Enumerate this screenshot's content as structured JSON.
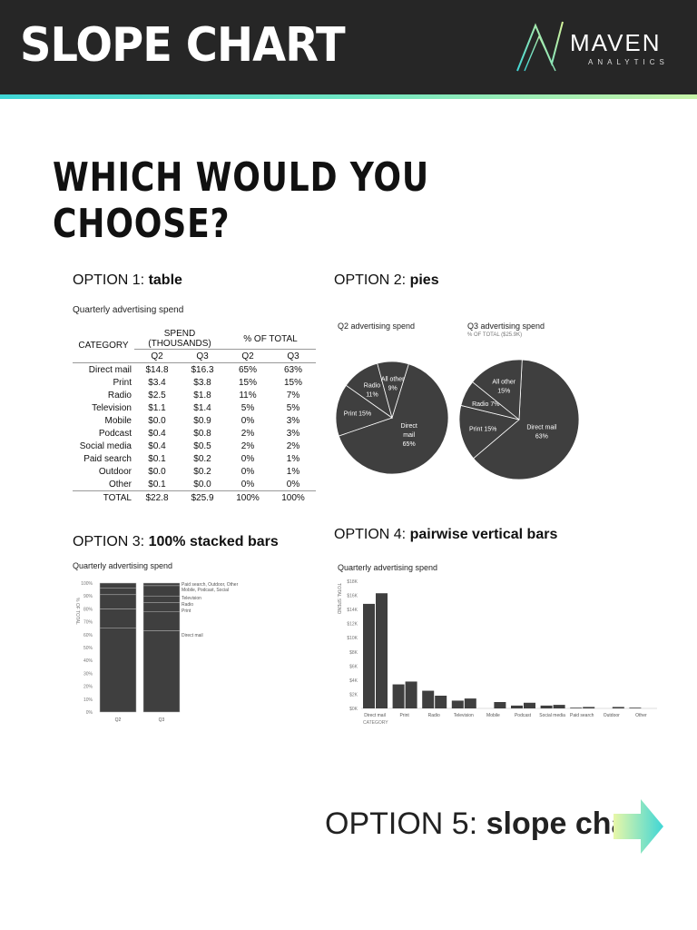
{
  "header": {
    "title": "SLOPE CHART",
    "logo_word": "MAVEN",
    "logo_sub": "ANALYTICS"
  },
  "question": "WHICH WOULD YOU CHOOSE?",
  "option1": {
    "prefix": "OPTION 1: ",
    "name": "table",
    "subtitle": "Quarterly advertising spend",
    "col_category": "CATEGORY",
    "col_spend": "SPEND (THOUSANDS)",
    "col_pct": "% OF TOTAL",
    "q2": "Q2",
    "q3": "Q3"
  },
  "option2": {
    "prefix": "OPTION 2: ",
    "name": "pies",
    "left_title": "Q2 advertising spend",
    "right_title": "Q3 advertising spend",
    "right_note": "% OF TOTAL ($25.9K)"
  },
  "option3": {
    "prefix": "OPTION 3: ",
    "name": "100% stacked bars",
    "subtitle": "Quarterly advertising spend",
    "ylabel": "% OF TOTAL",
    "labels": [
      "Paid search, Outdoor, Other",
      "Mobile, Podcast, Social",
      "Television",
      "Radio",
      "Print",
      "Direct mail"
    ]
  },
  "option4": {
    "prefix": "OPTION 4: ",
    "name": "pairwise vertical bars",
    "subtitle": "Quarterly advertising spend",
    "ylabel": "TOTAL SPEND",
    "xlabel": "CATEGORY"
  },
  "option5": {
    "prefix": "OPTION 5: ",
    "name": "slope chart"
  },
  "chart_data": [
    {
      "type": "table",
      "title": "Quarterly advertising spend",
      "columns": [
        "CATEGORY",
        "Q2",
        "Q3",
        "Q2",
        "Q3"
      ],
      "rows": [
        [
          "Direct mail",
          "$14.8",
          "$16.3",
          "65%",
          "63%"
        ],
        [
          "Print",
          "$3.4",
          "$3.8",
          "15%",
          "15%"
        ],
        [
          "Radio",
          "$2.5",
          "$1.8",
          "11%",
          "7%"
        ],
        [
          "Television",
          "$1.1",
          "$1.4",
          "5%",
          "5%"
        ],
        [
          "Mobile",
          "$0.0",
          "$0.9",
          "0%",
          "3%"
        ],
        [
          "Podcast",
          "$0.4",
          "$0.8",
          "2%",
          "3%"
        ],
        [
          "Social media",
          "$0.4",
          "$0.5",
          "2%",
          "2%"
        ],
        [
          "Paid search",
          "$0.1",
          "$0.2",
          "0%",
          "1%"
        ],
        [
          "Outdoor",
          "$0.0",
          "$0.2",
          "0%",
          "1%"
        ],
        [
          "Other",
          "$0.1",
          "$0.0",
          "0%",
          "0%"
        ]
      ],
      "total": [
        "TOTAL",
        "$22.8",
        "$25.9",
        "100%",
        "100%"
      ]
    },
    {
      "type": "pie",
      "title": "Q2 advertising spend",
      "slices": [
        {
          "label": "Direct mail",
          "value": 65,
          "text": [
            "Direct",
            "mail",
            "65%"
          ]
        },
        {
          "label": "Print",
          "value": 15,
          "text": [
            "Print 15%"
          ]
        },
        {
          "label": "Radio",
          "value": 11,
          "text": [
            "Radio",
            "11%"
          ]
        },
        {
          "label": "All other",
          "value": 9,
          "text": [
            "All other",
            "9%"
          ]
        }
      ]
    },
    {
      "type": "pie",
      "title": "Q3 advertising spend",
      "slices": [
        {
          "label": "Direct mail",
          "value": 63,
          "text": [
            "Direct mail",
            "63%"
          ]
        },
        {
          "label": "Print",
          "value": 15,
          "text": [
            "Print 15%"
          ]
        },
        {
          "label": "Radio",
          "value": 7,
          "text": [
            "Radio 7%"
          ]
        },
        {
          "label": "All other",
          "value": 15,
          "text": [
            "All other",
            "15%"
          ]
        }
      ]
    },
    {
      "type": "bar",
      "stacked": true,
      "title": "Quarterly advertising spend",
      "categories": [
        "Q2",
        "Q3"
      ],
      "series": [
        {
          "name": "Direct mail",
          "values": [
            65,
            63
          ]
        },
        {
          "name": "Print",
          "values": [
            15,
            15
          ]
        },
        {
          "name": "Radio",
          "values": [
            11,
            7
          ]
        },
        {
          "name": "Television",
          "values": [
            5,
            5
          ]
        },
        {
          "name": "Mobile, Podcast, Social",
          "values": [
            4,
            8
          ]
        },
        {
          "name": "Paid search, Outdoor, Other",
          "values": [
            0,
            2
          ]
        }
      ],
      "yticks": [
        "0%",
        "10%",
        "20%",
        "30%",
        "40%",
        "50%",
        "60%",
        "70%",
        "80%",
        "90%",
        "100%"
      ],
      "ylim": [
        0,
        100
      ],
      "ylabel": "% OF TOTAL"
    },
    {
      "type": "bar",
      "title": "Quarterly advertising spend",
      "categories": [
        "Direct mail",
        "Print",
        "Radio",
        "Television",
        "Mobile",
        "Podcast",
        "Social media",
        "Paid search",
        "Outdoor",
        "Other"
      ],
      "series": [
        {
          "name": "Q2",
          "values": [
            14.8,
            3.4,
            2.5,
            1.1,
            0.0,
            0.4,
            0.4,
            0.1,
            0.0,
            0.1
          ]
        },
        {
          "name": "Q3",
          "values": [
            16.3,
            3.8,
            1.8,
            1.4,
            0.9,
            0.8,
            0.5,
            0.2,
            0.2,
            0.0
          ]
        }
      ],
      "yticks": [
        "$0K",
        "$2K",
        "$4K",
        "$6K",
        "$8K",
        "$10K",
        "$12K",
        "$14K",
        "$16K",
        "$18K"
      ],
      "ylim": [
        0,
        18
      ],
      "ylabel": "TOTAL SPEND",
      "xlabel": "CATEGORY"
    }
  ]
}
